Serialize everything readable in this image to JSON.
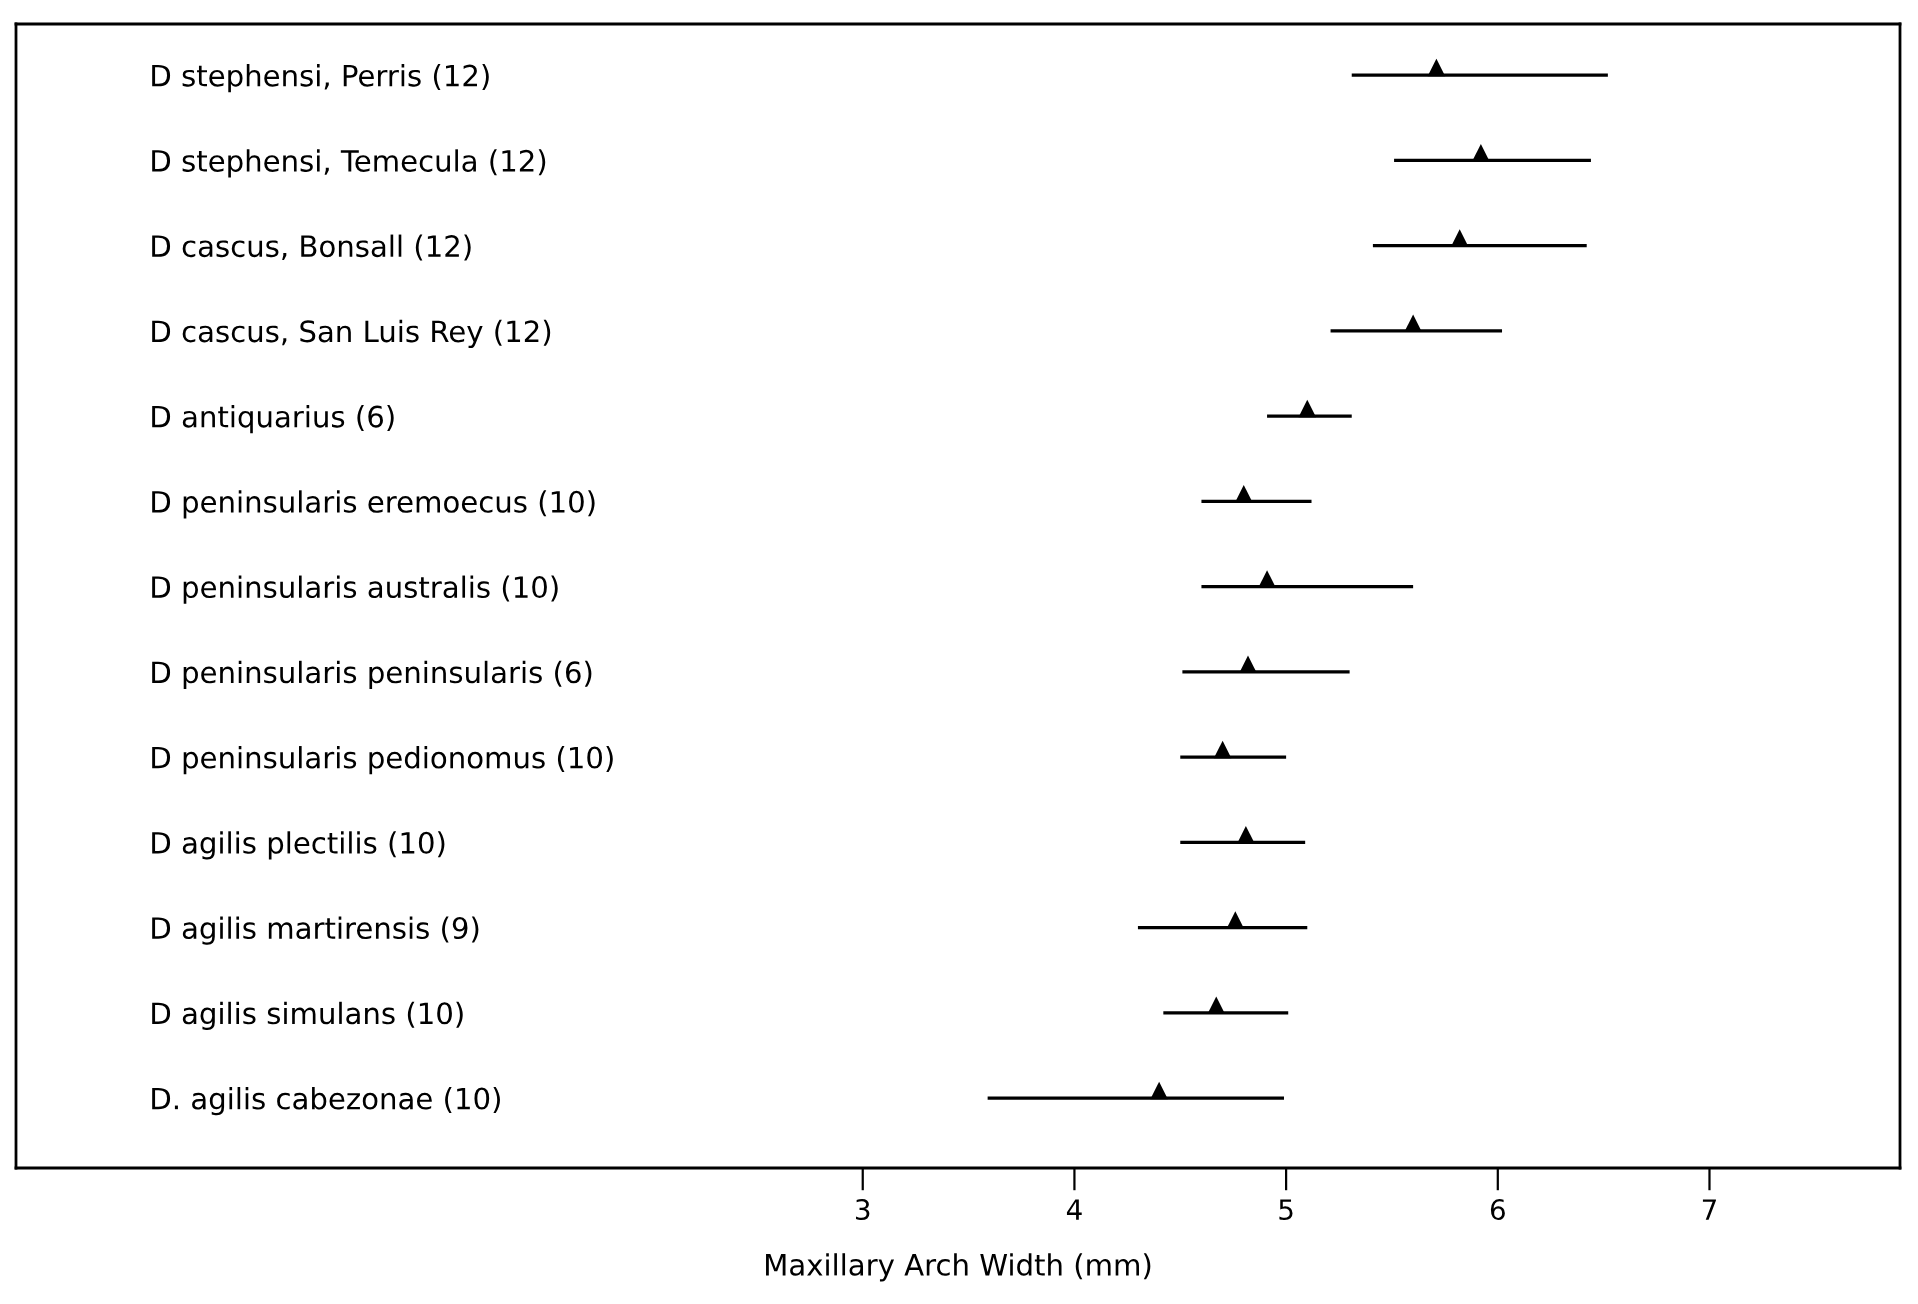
{
  "chart_data": {
    "type": "bar",
    "orientation": "horizontal",
    "xlabel": "Maxillary Arch Width (mm)",
    "categories": [
      "D stephensi, Perris (12)",
      "D stephensi, Temecula (12)",
      "D cascus, Bonsall (12)",
      "D cascus, San Luis Rey (12)",
      "D antiquarius (6)",
      "D peninsularis eremoecus (10)",
      "D peninsularis australis (10)",
      "D peninsularis peninsularis (6)",
      "D peninsularis pedionomus (10)",
      "D agilis plectilis (10)",
      "D agilis martirensis (9)",
      "D agilis simulans (10)",
      "D. agilis cabezonae (10)"
    ],
    "series": [
      {
        "color": "#000000",
        "base": [
          5.31,
          5.51,
          5.41,
          5.21,
          4.91,
          4.6,
          4.6,
          4.51,
          4.5,
          4.5,
          4.3,
          4.42,
          3.59
        ],
        "values": [
          1.21,
          0.93,
          1.01,
          0.81,
          0.4,
          0.52,
          1.0,
          0.79,
          0.5,
          0.59,
          0.8,
          0.59,
          1.4
        ]
      },
      {
        "type": "scatter",
        "color": "#000000",
        "marker": "triangle",
        "values": [
          5.71,
          5.92,
          5.82,
          5.6,
          5.1,
          4.8,
          4.91,
          4.82,
          4.7,
          4.81,
          4.76,
          4.67,
          4.4
        ]
      }
    ],
    "xlim": [
      -1.0,
      7.9
    ],
    "xticks": [
      3,
      4,
      5,
      6,
      7
    ],
    "tick_labels": "x",
    "grid": false,
    "legend": false
  }
}
